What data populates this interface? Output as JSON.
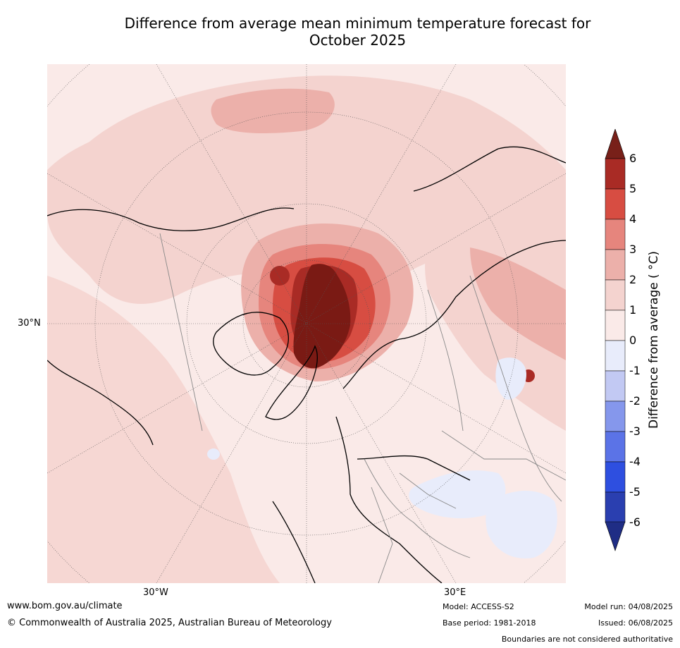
{
  "title": {
    "line1": "Difference from average mean minimum temperature forecast for",
    "line2": "October 2025"
  },
  "map": {
    "projection": "north-polar-stereographic",
    "lat_labels": [
      "30°N"
    ],
    "lon_labels": [
      "30°W",
      "30°E"
    ],
    "anomaly_regions": [
      {
        "region": "Greenland / Arctic Ocean north of Canada",
        "anomaly_band": "> 6",
        "color": "#7a1a14"
      },
      {
        "region": "Central Arctic near Svalbard",
        "anomaly_band": "4 to 6",
        "color": "#d94b40"
      },
      {
        "region": "Northern Siberia",
        "anomaly_band": "2 to 4",
        "color": "#e9a49d"
      },
      {
        "region": "Northern North America",
        "anomaly_band": "1 to 2",
        "color": "#f4d4d0"
      },
      {
        "region": "Kazakhstan / Caspian area",
        "anomaly_band": "0 to -1",
        "color": "#e8ecfb"
      }
    ]
  },
  "colorbar": {
    "title": "Difference from average ( °C)",
    "ticks": [
      "6",
      "5",
      "4",
      "3",
      "2",
      "1",
      "0",
      "-1",
      "-2",
      "-3",
      "-4",
      "-5",
      "-6"
    ],
    "colors": [
      "#a92b25",
      "#d74d42",
      "#e6857d",
      "#ecb0aa",
      "#f4d3cf",
      "#faeae8",
      "#e8ecfb",
      "#c2c9f3",
      "#8597ec",
      "#5b73e7",
      "#2e4fe0",
      "#2a3fb0"
    ],
    "over_color": "#782019",
    "under_color": "#1f2d85"
  },
  "footer": {
    "website": "www.bom.gov.au/climate",
    "copyright": "© Commonwealth of Australia 2025, Australian Bureau of Meteorology",
    "model": "Model: ACCESS-S2",
    "base_period": "Base period: 1981-2018",
    "model_run": "Model run: 04/08/2025",
    "issued": "Issued: 06/08/2025",
    "boundaries_note": "Boundaries are not considered authoritative"
  }
}
